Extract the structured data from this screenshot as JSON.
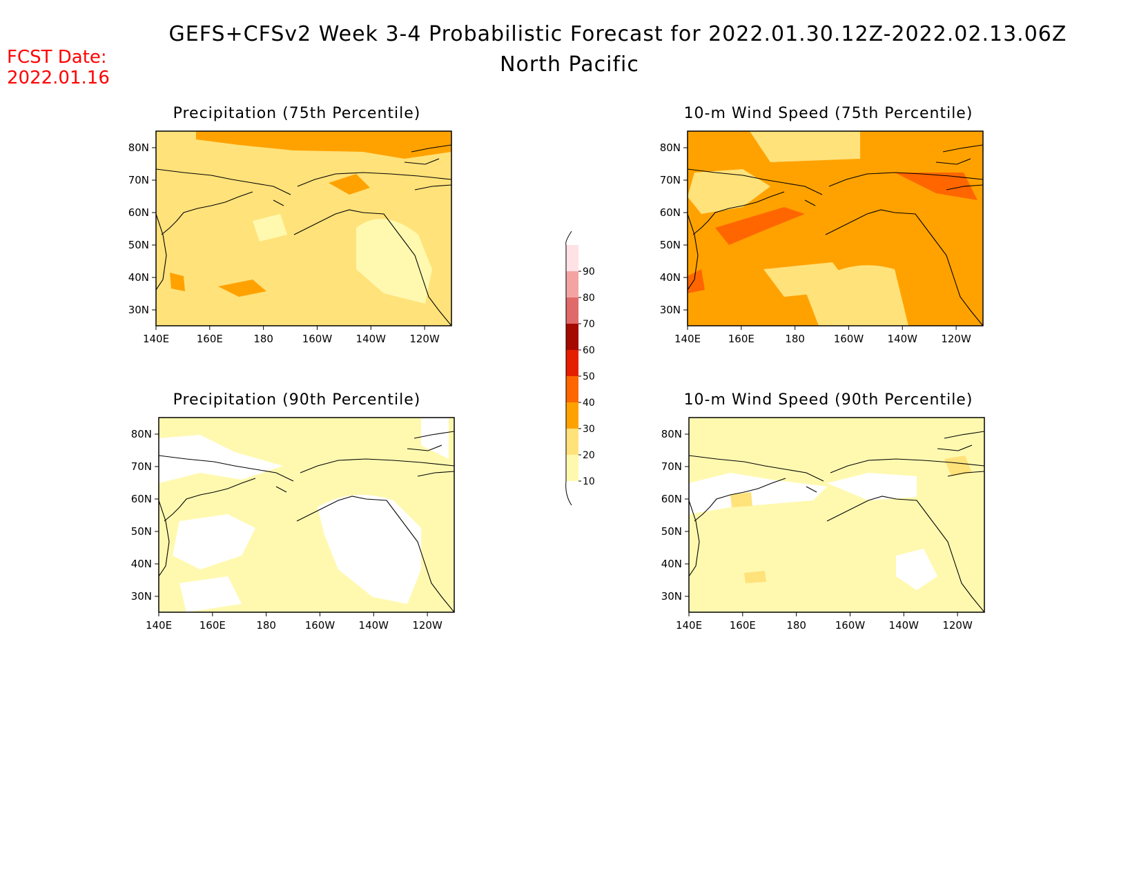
{
  "header": {
    "title": "GEFS+CFSv2 Week 3-4 Probabilistic Forecast for 2022.01.30.12Z-2022.02.13.06Z",
    "subtitle": "North Pacific",
    "fcst_label": "FCST Date:",
    "fcst_date": "2022.01.16"
  },
  "panels": [
    {
      "title": "Precipitation (75th Percentile)",
      "base_level": 20
    },
    {
      "title": "10-m Wind Speed (75th Percentile)",
      "base_level": 30
    },
    {
      "title": "Precipitation (90th Percentile)",
      "base_level": 10
    },
    {
      "title": "10-m Wind Speed (90th Percentile)",
      "base_level": 10
    }
  ],
  "axes": {
    "x_ticks": [
      "140E",
      "160E",
      "180",
      "160W",
      "140W",
      "120W"
    ],
    "y_ticks": [
      "80N",
      "70N",
      "60N",
      "50N",
      "40N",
      "30N"
    ]
  },
  "colorbar": {
    "levels": [
      10,
      20,
      30,
      40,
      50,
      60,
      70,
      80,
      90
    ],
    "labels": [
      "10",
      "20",
      "30",
      "40",
      "50",
      "60",
      "70",
      "80",
      "90"
    ],
    "colors": [
      "#fff9b0",
      "#ffe27a",
      "#ffa200",
      "#ff6600",
      "#e61e00",
      "#a50a00",
      "#e06a6a",
      "#f4a3a3",
      "#ffe2e6"
    ]
  }
}
